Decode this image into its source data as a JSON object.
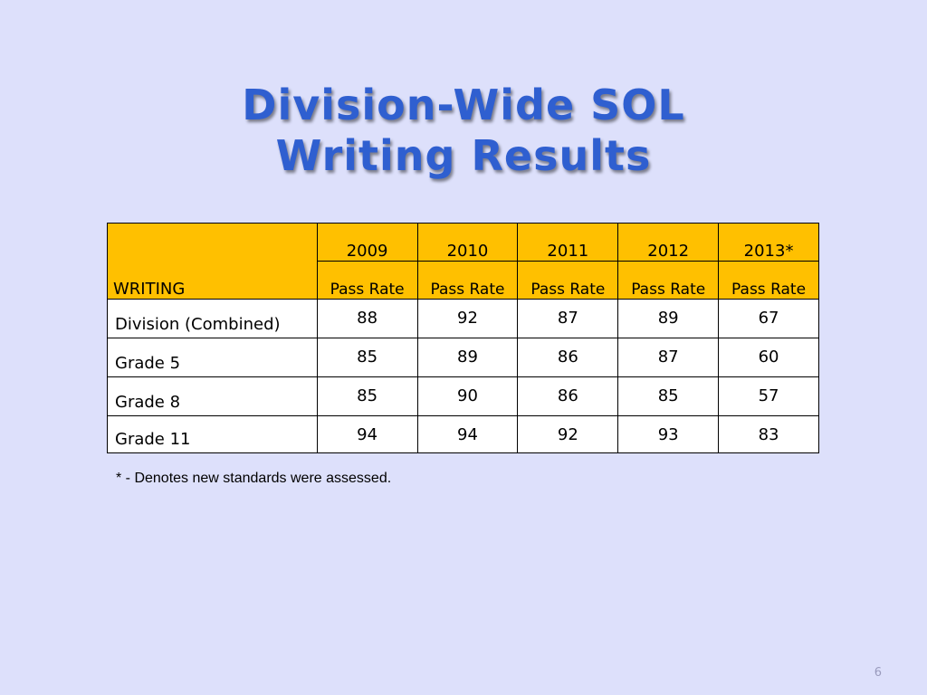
{
  "title": {
    "line1": "Division-Wide SOL",
    "line2": "Writing Results"
  },
  "table": {
    "corner_label": "WRITING",
    "years": [
      "2009",
      "2010",
      "2011",
      "2012",
      "2013*"
    ],
    "subheader": [
      "Pass Rate",
      "Pass Rate",
      "Pass Rate",
      "Pass Rate",
      "Pass Rate"
    ],
    "rows": [
      {
        "label": "Division (Combined)",
        "values": [
          "88",
          "92",
          "87",
          "89",
          "67"
        ]
      },
      {
        "label": "Grade 5",
        "values": [
          "85",
          "89",
          "86",
          "87",
          "60"
        ]
      },
      {
        "label": "Grade 8",
        "values": [
          "85",
          "90",
          "86",
          "85",
          "57"
        ]
      },
      {
        "label": "Grade 11",
        "values": [
          "94",
          "94",
          "92",
          "93",
          "83"
        ]
      }
    ]
  },
  "footnote": "* - Denotes new standards were assessed.",
  "page_number": "6",
  "colors": {
    "background": "#dde0fb",
    "title": "#2f5fd0",
    "header_fill": "#ffc000"
  }
}
